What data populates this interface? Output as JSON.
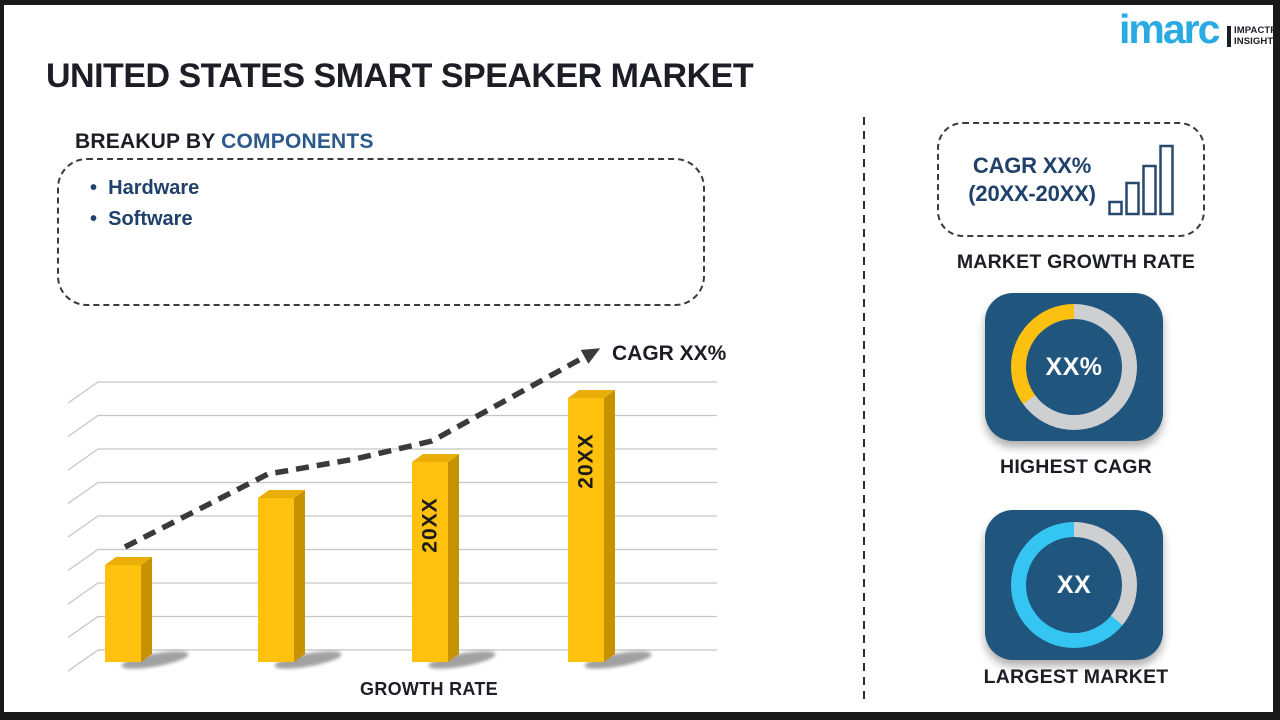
{
  "title": "UNITED STATES SMART SPEAKER MARKET",
  "logo": {
    "brand": "imarc",
    "tagline_line1": "IMPACTFUL",
    "tagline_line2": "INSIGHTS"
  },
  "breakup": {
    "heading_prefix": "BREAKUP BY",
    "heading_highlight": "COMPONENTS",
    "items": [
      "Hardware",
      "Software"
    ]
  },
  "chart_data": {
    "type": "bar",
    "title": "",
    "xlabel": "GROWTH RATE",
    "ylabel": "",
    "categories": [
      "",
      "",
      "20XX",
      "20XX"
    ],
    "values": [
      97,
      164,
      200,
      264
    ],
    "value_note": "bar heights relative (pixel units); numeric values masked as 20XX in source",
    "gridline_count": 9,
    "legend": "none",
    "trend_line": {
      "label": "CAGR XX%",
      "style": "dashed-arrow-up"
    }
  },
  "right_panel": {
    "growth_box": {
      "line1": "CAGR XX%",
      "line2": "(20XX-20XX)"
    },
    "market_growth_label": "MARKET GROWTH RATE",
    "highest_cagr": {
      "value": "XX%",
      "label": "HIGHEST CAGR",
      "percent_filled": 35
    },
    "largest_market": {
      "value": "XX",
      "label": "LARGEST MARKET",
      "percent_filled": 64
    }
  },
  "colors": {
    "brand_cyan": "#29ABE2",
    "bar_gold": "#FEC10D",
    "bar_gold_side": "#C79200",
    "bar_gold_top": "#E9AE07",
    "tile_blue": "#20557D",
    "ring_gray": "#CDCFD1",
    "ring_cyan": "#35C5F2",
    "ring_yellow": "#FCC010",
    "navy": "#20416B",
    "ink": "#1D1D25"
  }
}
